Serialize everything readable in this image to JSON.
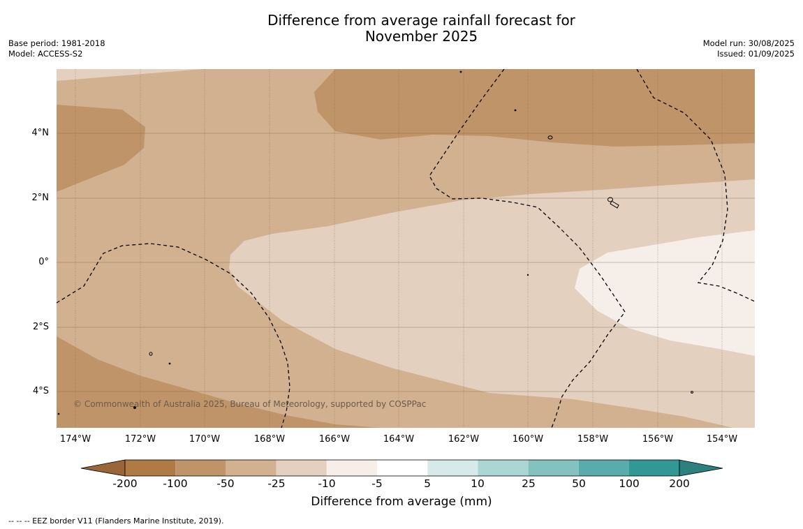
{
  "title": {
    "line1": "Difference from average rainfall forecast for",
    "line2": "November 2025"
  },
  "meta_left": {
    "base_period": "Base period: 1981-2018",
    "model": "Model: ACCESS-S2"
  },
  "meta_right": {
    "model_run": "Model run: 30/08/2025",
    "issued": "Issued: 01/09/2025"
  },
  "map": {
    "lat_labels": [
      "4°N",
      "2°N",
      "0°",
      "2°S",
      "4°S"
    ],
    "lon_labels": [
      "174°W",
      "172°W",
      "170°W",
      "168°W",
      "166°W",
      "164°W",
      "162°W",
      "160°W",
      "158°W",
      "156°W",
      "154°W"
    ],
    "copyright": "© Commonwealth of Australia 2025, Bureau of Meteorology, supported by COSPPac",
    "colors": {
      "class_-100_-50": "#c09469",
      "class_-50_-25": "#d1b190",
      "class_-25_-10": "#e3d0bf",
      "class_-10_-5": "#f5eee9"
    }
  },
  "colorbar": {
    "ticks": [
      "-200",
      "-100",
      "-50",
      "-25",
      "-10",
      "-5",
      "5",
      "10",
      "25",
      "50",
      "100",
      "200"
    ],
    "colors": [
      "#b07a45",
      "#c09469",
      "#d1b190",
      "#e3d0bf",
      "#f5eee9",
      "#ffffff",
      "#d6ebe9",
      "#acd6d4",
      "#83c2bf",
      "#5aacaa",
      "#329896"
    ],
    "extend_low_color": "#9a6538",
    "extend_high_color": "#2c807e",
    "title": "Difference from average (mm)"
  },
  "footnote": "--  --  -- EEZ border V11 (Flanders Marine Institute, 2019)."
}
